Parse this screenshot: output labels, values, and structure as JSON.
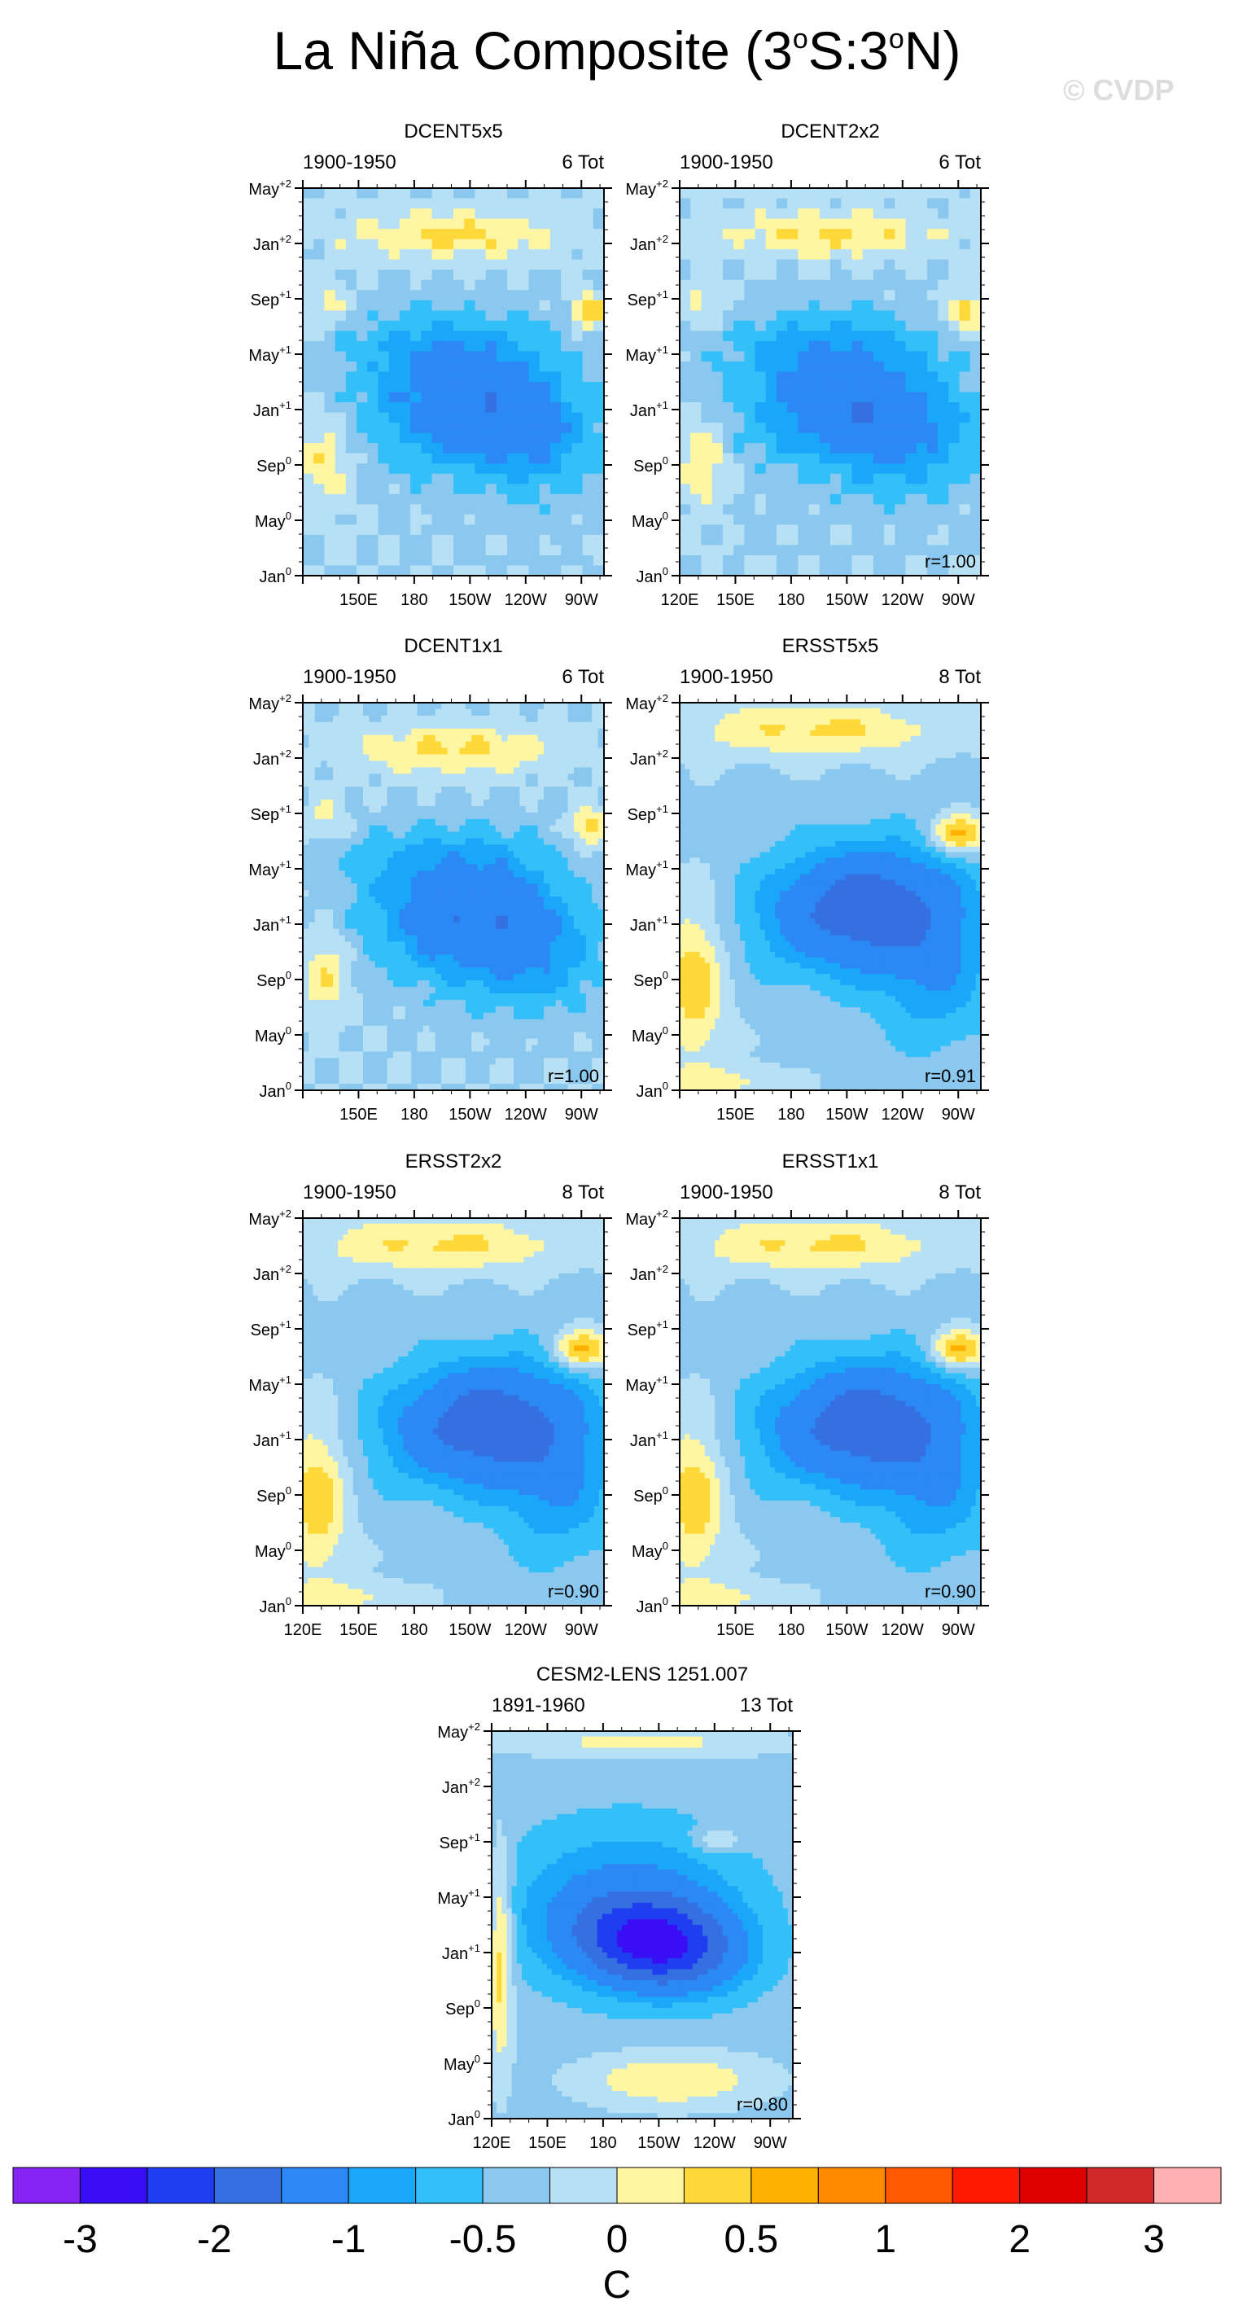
{
  "title": {
    "main": "La Niña Composite (3",
    "deg": "o",
    "mid": "S:3",
    "deg2": "o",
    "end": "N)"
  },
  "watermark": "© CVDP",
  "colors": {
    "frame": "#000000",
    "contour": "#555555"
  },
  "y_ticks": [
    {
      "label": "Jan",
      "sup": "0"
    },
    {
      "label": "May",
      "sup": "0"
    },
    {
      "label": "Sep",
      "sup": "0"
    },
    {
      "label": "Jan",
      "sup": "+1"
    },
    {
      "label": "May",
      "sup": "+1"
    },
    {
      "label": "Sep",
      "sup": "+1"
    },
    {
      "label": "Jan",
      "sup": "+2"
    },
    {
      "label": "May",
      "sup": "+2"
    }
  ],
  "x_ticks": [
    "120E",
    "150E",
    "180",
    "150W",
    "120W",
    "90W"
  ],
  "chart_data": [
    {
      "type": "heatmap",
      "title": "DCENT5x5",
      "years": "1900-1950",
      "count": "6 Tot",
      "corr": "",
      "show_120E": false
    },
    {
      "type": "heatmap",
      "title": "DCENT2x2",
      "years": "1900-1950",
      "count": "6 Tot",
      "corr": "r=1.00",
      "show_120E": true
    },
    {
      "type": "heatmap",
      "title": "DCENT1x1",
      "years": "1900-1950",
      "count": "6 Tot",
      "corr": "r=1.00",
      "show_120E": false
    },
    {
      "type": "heatmap",
      "title": "ERSST5x5",
      "years": "1900-1950",
      "count": "8 Tot",
      "corr": "r=0.91",
      "show_120E": false
    },
    {
      "type": "heatmap",
      "title": "ERSST2x2",
      "years": "1900-1950",
      "count": "8 Tot",
      "corr": "r=0.90",
      "show_120E": true
    },
    {
      "type": "heatmap",
      "title": "ERSST1x1",
      "years": "1900-1950",
      "count": "8 Tot",
      "corr": "r=0.90",
      "show_120E": false
    },
    {
      "type": "heatmap",
      "title": "CESM2-LENS 1251.007",
      "years": "1891-1960",
      "count": "13 Tot",
      "corr": "r=0.80",
      "show_120E": true
    }
  ],
  "colorbar": {
    "unit": "C",
    "colors": [
      "#8624f5",
      "#3a0ef5",
      "#1f3ef0",
      "#3470e0",
      "#2b88f5",
      "#1aa6f9",
      "#33c0f8",
      "#8bc8ef",
      "#b8e0f5",
      "#fff6a3",
      "#ffd83a",
      "#ffb100",
      "#ff8a00",
      "#ff5a00",
      "#ff1800",
      "#de0000",
      "#d02828",
      "#ffb0b0"
    ],
    "labels": [
      "-3",
      "-2",
      "-1",
      "-0.5",
      "0",
      "0.5",
      "1",
      "2",
      "3"
    ]
  }
}
